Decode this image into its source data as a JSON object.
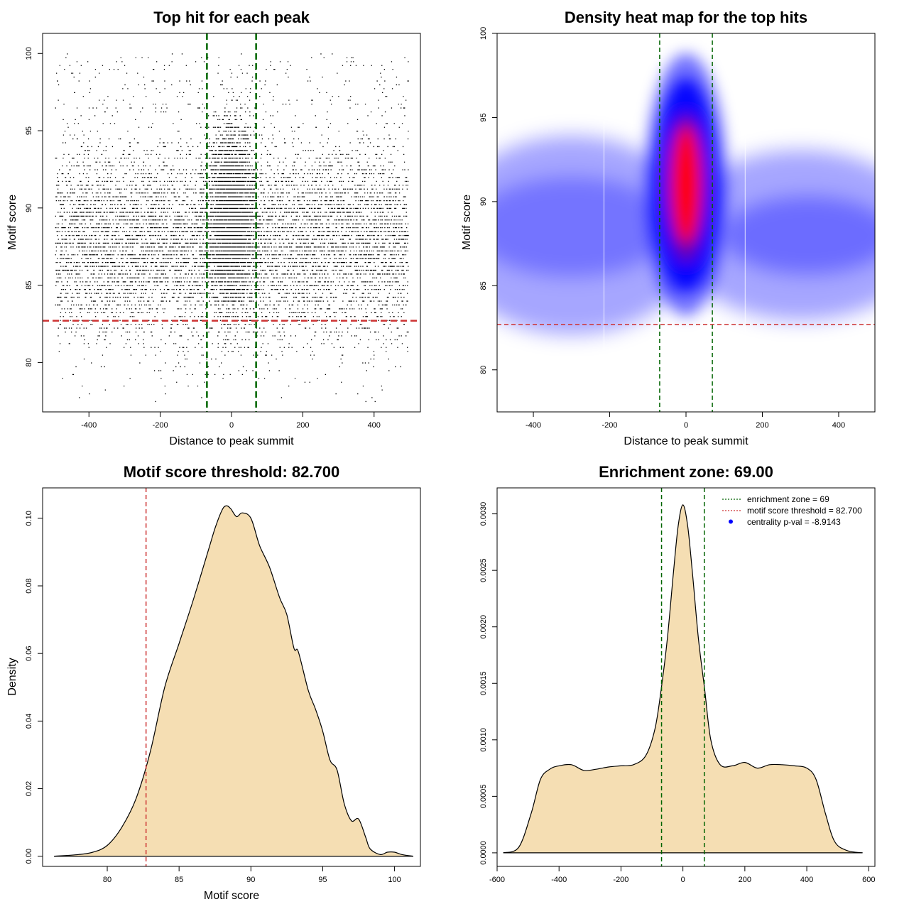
{
  "chart_data": [
    {
      "type": "scatter",
      "title": "Top hit for each peak",
      "xlabel": "Distance to peak summit",
      "ylabel": "Motif score",
      "xlim": [
        -530,
        530
      ],
      "ylim": [
        76.8,
        101.3
      ],
      "xticks": [
        -400,
        -200,
        0,
        200,
        400
      ],
      "yticks": [
        80,
        85,
        90,
        95,
        100
      ],
      "enrichment_zone": 69,
      "score_threshold": 82.7,
      "point_distribution": {
        "x_range": [
          -495,
          495
        ],
        "y_range": [
          77.5,
          100
        ],
        "central_cluster_x": [
          -69,
          69
        ],
        "central_cluster_y_range": [
          82,
          99
        ]
      },
      "colors": {
        "points": "#000000",
        "zone_line": "#006400",
        "threshold_line": "#cd3333"
      }
    },
    {
      "type": "heatmap",
      "title": "Density heat map for the top hits",
      "xlabel": "Distance to peak summit",
      "ylabel": "Motif score",
      "xlim": [
        -495,
        495
      ],
      "ylim": [
        77.5,
        100
      ],
      "xticks": [
        -400,
        -200,
        0,
        200,
        400
      ],
      "yticks": [
        80,
        85,
        90,
        95,
        100
      ],
      "enrichment_zone": 69,
      "score_threshold": 82.7,
      "hotspot": {
        "x": 0,
        "y": 91
      },
      "colors": {
        "low": "#ffffff",
        "mid": "#0000ff",
        "high": "#ff0000",
        "zone_line": "#006400",
        "threshold_line": "#cd3333"
      }
    },
    {
      "type": "area",
      "title": "Motif score threshold: 82.700",
      "xlabel": "Motif score",
      "ylabel": "Density",
      "xlim": [
        75.5,
        101.8
      ],
      "ylim": [
        -0.003,
        0.109
      ],
      "xticks": [
        80,
        85,
        90,
        95,
        100
      ],
      "yticks": [
        0.0,
        0.02,
        0.04,
        0.06,
        0.08,
        0.1
      ],
      "ytick_labels": [
        "0.00",
        "0.02",
        "0.04",
        "0.06",
        "0.08",
        "0.10"
      ],
      "threshold": 82.7,
      "x": [
        76.3,
        78,
        79,
        80,
        81,
        82,
        83,
        84,
        85,
        86,
        87,
        87.5,
        88,
        88.3,
        88.6,
        89,
        89.4,
        90,
        90.6,
        91.3,
        92,
        92.5,
        93,
        93.3,
        94,
        94.5,
        95,
        95.5,
        96,
        96.5,
        97,
        97.5,
        98,
        98.3,
        99,
        99.5,
        100,
        100.5,
        101.3
      ],
      "y": [
        0.0,
        0.0005,
        0.0012,
        0.0032,
        0.0085,
        0.017,
        0.031,
        0.05,
        0.063,
        0.076,
        0.09,
        0.097,
        0.1025,
        0.1037,
        0.1028,
        0.1005,
        0.1016,
        0.1,
        0.092,
        0.0855,
        0.0765,
        0.0715,
        0.0615,
        0.0605,
        0.049,
        0.0435,
        0.037,
        0.0285,
        0.0255,
        0.0155,
        0.0105,
        0.011,
        0.0055,
        0.0022,
        0.0005,
        0.0012,
        0.0012,
        0.0005,
        0.0
      ]
    },
    {
      "type": "area",
      "title": "Enrichment zone: 69.00",
      "xlabel": "Distance to peak summit",
      "ylabel": "Density",
      "xlim": [
        -600,
        620
      ],
      "ylim": [
        -0.00012,
        0.00323
      ],
      "xticks": [
        -600,
        -400,
        -200,
        0,
        200,
        400,
        600
      ],
      "yticks": [
        0.0,
        0.0005,
        0.001,
        0.0015,
        0.002,
        0.0025,
        0.003
      ],
      "ytick_labels": [
        "0.0000",
        "0.0005",
        "0.0010",
        "0.0015",
        "0.0020",
        "0.0025",
        "0.0030"
      ],
      "enrichment_zone": 69,
      "x": [
        -580,
        -530,
        -490,
        -460,
        -430,
        -400,
        -360,
        -320,
        -280,
        -240,
        -200,
        -160,
        -120,
        -90,
        -70,
        -50,
        -30,
        -15,
        0,
        15,
        30,
        50,
        70,
        90,
        120,
        160,
        200,
        240,
        280,
        320,
        360,
        400,
        430,
        460,
        490,
        530,
        580
      ],
      "y": [
        0.0,
        5e-05,
        0.00035,
        0.00065,
        0.00074,
        0.00077,
        0.00078,
        0.00073,
        0.00074,
        0.00076,
        0.00077,
        0.00078,
        0.00086,
        0.0011,
        0.00145,
        0.0019,
        0.0025,
        0.0029,
        0.00308,
        0.0029,
        0.0025,
        0.0019,
        0.00145,
        0.001,
        0.00078,
        0.00077,
        0.0008,
        0.00075,
        0.00078,
        0.00078,
        0.00077,
        0.00075,
        0.00065,
        0.00035,
        0.0001,
        2e-05,
        0.0
      ],
      "legend": {
        "placement": "top-right",
        "entries": [
          {
            "label": "enrichment zone = 69",
            "color": "#006400",
            "symbol": "dotted-line"
          },
          {
            "label": "motif score threshold = 82.700",
            "color": "#cd3333",
            "symbol": "dotted-line"
          },
          {
            "label": "centrality p-val = -8.9143",
            "color": "#0000ff",
            "symbol": "dot"
          }
        ]
      }
    }
  ]
}
